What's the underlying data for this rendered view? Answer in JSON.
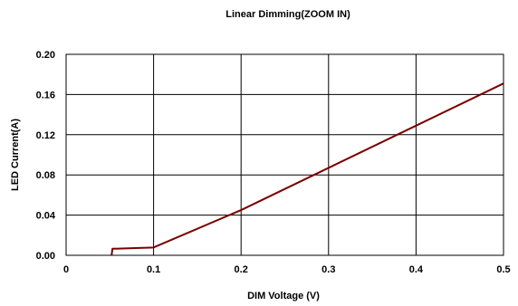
{
  "chart_data": {
    "type": "line",
    "title": "Linear Dimming(ZOOM IN)",
    "xlabel": "DIM Voltage (V)",
    "ylabel": "LED Current(A)",
    "xlim": [
      0,
      0.5
    ],
    "ylim": [
      0,
      0.2
    ],
    "xticks": [
      0,
      0.1,
      0.2,
      0.3,
      0.4,
      0.5
    ],
    "xtick_labels": [
      "0",
      "0.1",
      "0.2",
      "0.3",
      "0.4",
      "0.5"
    ],
    "yticks": [
      0,
      0.04,
      0.08,
      0.12,
      0.16,
      0.2
    ],
    "ytick_labels": [
      "0.00",
      "0.04",
      "0.08",
      "0.12",
      "0.16",
      "0.20"
    ],
    "grid": true,
    "legend": "none",
    "series": [
      {
        "color": "#7a0000",
        "points": [
          [
            0.052,
            0.0
          ],
          [
            0.053,
            0.0065
          ],
          [
            0.1,
            0.0078
          ],
          [
            0.2,
            0.045
          ],
          [
            0.3,
            0.087
          ],
          [
            0.4,
            0.129
          ],
          [
            0.5,
            0.171
          ]
        ]
      }
    ]
  }
}
